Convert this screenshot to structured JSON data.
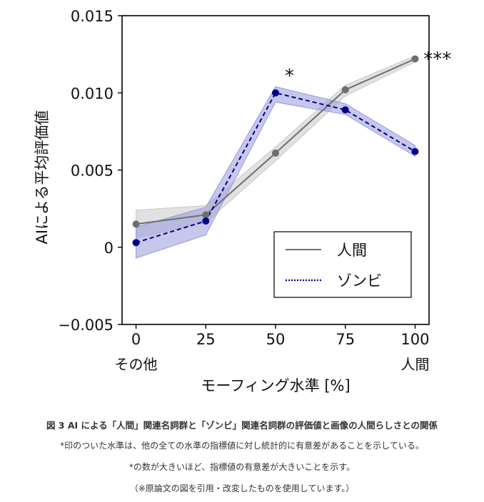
{
  "chart_data": {
    "type": "line",
    "ylabel": "AIによる平均評価値",
    "xlabel": "モーフィング水準 [%]",
    "x": [
      0,
      25,
      50,
      75,
      100
    ],
    "xtick_labels": [
      "0",
      "25",
      "50",
      "75",
      "100"
    ],
    "x_sublabels": {
      "left": "その他",
      "right": "人間"
    },
    "yticks": [
      -0.005,
      0,
      0.005,
      0.01,
      0.015
    ],
    "ytick_labels": [
      "−0.005",
      "0",
      "0.005",
      "0.010",
      "0.015"
    ],
    "ylim": [
      -0.005,
      0.015
    ],
    "xlim": [
      -5,
      105
    ],
    "series": [
      {
        "name": "人間",
        "color": "#6e6e6e",
        "band_color": "#c9c9c9",
        "line_style": "solid",
        "values": [
          0.0015,
          0.0021,
          0.0061,
          0.0102,
          0.0122
        ],
        "lower": [
          0.0006,
          0.0016,
          0.0056,
          0.0098,
          0.012
        ],
        "upper": [
          0.0024,
          0.0027,
          0.0065,
          0.0105,
          0.0124
        ]
      },
      {
        "name": "ゾンビ",
        "color": "#00008b",
        "band_color": "#9999dd",
        "line_style": "dashed",
        "values": [
          0.0003,
          0.0017,
          0.01,
          0.0089,
          0.0062
        ],
        "lower": [
          -0.0007,
          0.0008,
          0.0094,
          0.0086,
          0.0059
        ],
        "upper": [
          0.0013,
          0.0026,
          0.0104,
          0.0093,
          0.0066
        ]
      }
    ],
    "annotations": [
      {
        "text": "*",
        "x": 55,
        "y": 0.0107
      },
      {
        "text": "***",
        "x": 108,
        "y": 0.0118
      }
    ],
    "legend_position": "lower-right"
  },
  "caption": {
    "title": "図 3 AI による「人間」関連名詞群と「ゾンビ」関連名詞群の評価値と画像の人間らしさとの関係",
    "line1": "*印のついた水準は、他の全ての水準の指標値に対し統計的に有意差があることを示している。",
    "line2": "*の数が大きいほど、指標値の有意差が大きいことを示す。",
    "line3": "（※原論文の図を引用・改変したものを使用しています。）"
  }
}
